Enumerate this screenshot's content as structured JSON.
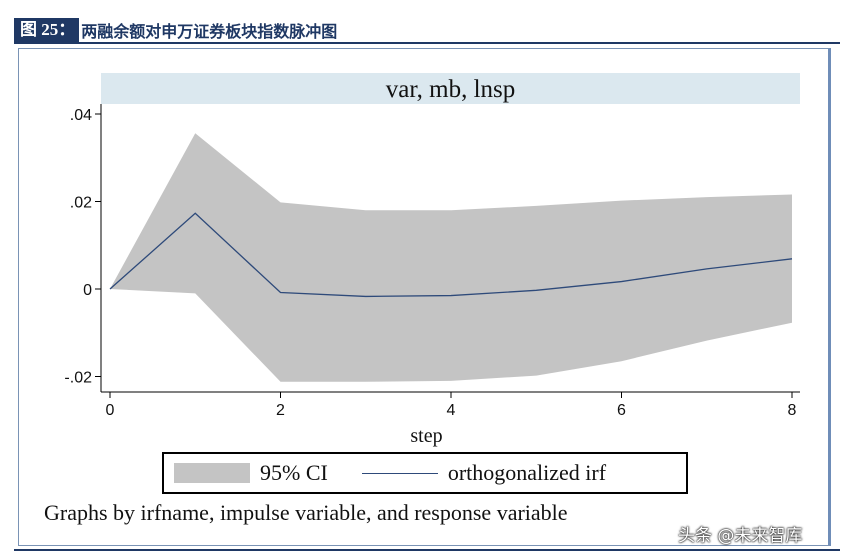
{
  "header": {
    "label": "图 25：",
    "title": "两融余额对申万证券板块指数脉冲图"
  },
  "chart_data": {
    "type": "area",
    "title": "var, mb, lnsp",
    "xlabel": "step",
    "ylabel": "",
    "xlim": [
      0,
      8
    ],
    "ylim": [
      -0.02,
      0.04
    ],
    "xticks": [
      0,
      2,
      4,
      6,
      8
    ],
    "xtick_labels": [
      "0",
      "2",
      "4",
      "6",
      "8"
    ],
    "yticks": [
      -0.02,
      0,
      0.02,
      0.04
    ],
    "ytick_labels": [
      "-.02",
      "0",
      ".02",
      ".04"
    ],
    "x": [
      0,
      1,
      2,
      3,
      4,
      5,
      6,
      7,
      8
    ],
    "series": [
      {
        "name": "95% CI",
        "kind": "band",
        "lower": [
          0,
          -0.001,
          -0.0212,
          -0.0212,
          -0.021,
          -0.0198,
          -0.0165,
          -0.0118,
          -0.0077
        ],
        "upper": [
          0,
          0.0356,
          0.0198,
          0.018,
          0.018,
          0.019,
          0.0202,
          0.021,
          0.0216
        ]
      },
      {
        "name": "orthogonalized irf",
        "kind": "line",
        "values": [
          0,
          0.0173,
          -0.0008,
          -0.0017,
          -0.0015,
          -0.0003,
          0.0017,
          0.0046,
          0.0069
        ]
      }
    ],
    "grid": false,
    "legend_position": "bottom",
    "colors": {
      "band": "#c4c4c4",
      "line": "#2e4a7a",
      "title_bar": "#dbe8ef"
    }
  },
  "legend": {
    "ci_label": "95% CI",
    "irf_label": "orthogonalized irf"
  },
  "note": "Graphs by irfname, impulse variable, and response variable",
  "watermark": "头条 @未来智库"
}
